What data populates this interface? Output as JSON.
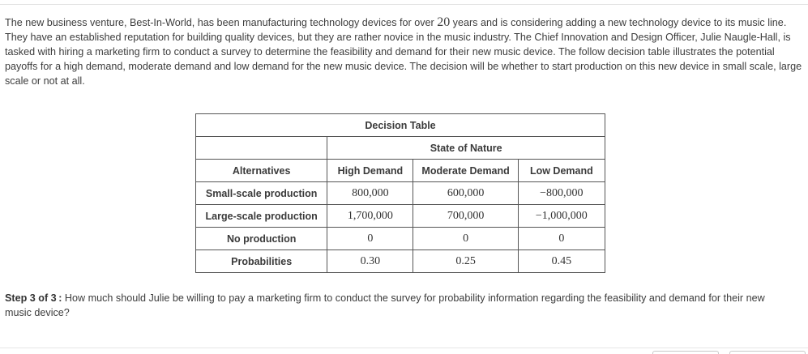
{
  "intro": {
    "part1": "The new business venture, Best-In-World, has been manufacturing technology devices for over ",
    "years": "20",
    "part2": " years and is considering adding a new technology device to its music line. They have an established reputation for building quality devices, but they are rather novice in the music industry. The Chief Innovation and Design Officer, Julie Naugle-Hall, is tasked with hiring a marketing firm to conduct a survey to determine the feasibility and demand for their new music device. The follow decision table illustrates the potential payoffs for a high demand, moderate demand and low demand for the new music device. The decision will be whether to start production on this new device in small scale, large scale or not at all."
  },
  "table": {
    "title": "Decision Table",
    "state_of_nature": "State of Nature",
    "headers": [
      "Alternatives",
      "High Demand",
      "Moderate Demand",
      "Low Demand"
    ],
    "rows": [
      {
        "label": "Small-scale production",
        "values": [
          "800,000",
          "600,000",
          "−800,000"
        ]
      },
      {
        "label": "Large-scale production",
        "values": [
          "1,700,000",
          "700,000",
          "−1,000,000"
        ]
      },
      {
        "label": "No production",
        "values": [
          "0",
          "0",
          "0"
        ]
      },
      {
        "label": "Probabilities",
        "values": [
          "0.30",
          "0.25",
          "0.45"
        ]
      }
    ]
  },
  "step": {
    "label": "Step 3 of 3 :",
    "question": " How much should Julie be willing to pay a marketing firm to conduct the survey for probability information regarding the feasibility and demand for their new music device?"
  }
}
